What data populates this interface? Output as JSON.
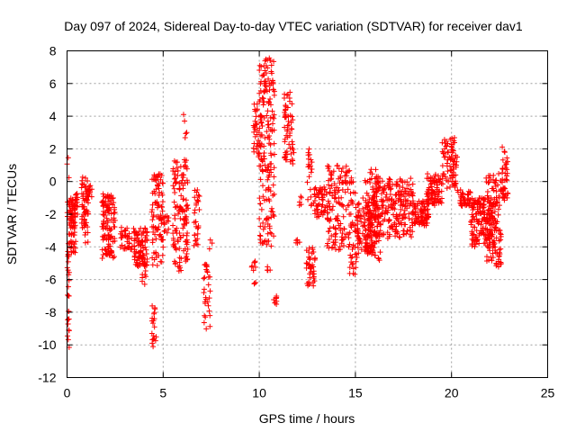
{
  "chart_data": {
    "type": "scatter",
    "title": "Day 097 of 2024, Sidereal Day-to-day VTEC variation (SDTVAR) for receiver dav1",
    "xlabel": "GPS time / hours",
    "ylabel": "SDTVAR / TECUs",
    "xlim": [
      0,
      25
    ],
    "ylim": [
      -12,
      8
    ],
    "xticks": [
      0,
      5,
      10,
      15,
      20,
      25
    ],
    "yticks": [
      -12,
      -10,
      -8,
      -6,
      -4,
      -2,
      0,
      2,
      4,
      6,
      8
    ],
    "grid": true,
    "marker": "+",
    "color": "#ff0000",
    "series": [
      {
        "name": "SDTVAR",
        "clusters": [
          {
            "x": [
              0.0,
              0.12
            ],
            "y": [
              -10.2,
              1.5
            ],
            "n": 40
          },
          {
            "x": [
              0.12,
              0.45
            ],
            "y": [
              -4.4,
              -1.0
            ],
            "n": 70
          },
          {
            "x": [
              0.35,
              0.55
            ],
            "y": [
              -2.2,
              -0.6
            ],
            "n": 20
          },
          {
            "x": [
              0.75,
              1.1
            ],
            "y": [
              -3.8,
              0.5
            ],
            "n": 60
          },
          {
            "x": [
              1.1,
              1.3
            ],
            "y": [
              -1.0,
              -0.2
            ],
            "n": 12
          },
          {
            "x": [
              1.8,
              2.5
            ],
            "y": [
              -4.7,
              -0.7
            ],
            "n": 120
          },
          {
            "x": [
              2.7,
              3.5
            ],
            "y": [
              -4.2,
              -2.8
            ],
            "n": 40
          },
          {
            "x": [
              3.5,
              4.2
            ],
            "y": [
              -5.2,
              -2.8
            ],
            "n": 80
          },
          {
            "x": [
              3.9,
              4.15
            ],
            "y": [
              -6.5,
              -4.5
            ],
            "n": 15
          },
          {
            "x": [
              4.4,
              4.65
            ],
            "y": [
              -10.3,
              -7.6
            ],
            "n": 20
          },
          {
            "x": [
              4.4,
              5.0
            ],
            "y": [
              -5.2,
              0.5
            ],
            "n": 90
          },
          {
            "x": [
              5.0,
              5.3
            ],
            "y": [
              -3.2,
              -2.0
            ],
            "n": 15
          },
          {
            "x": [
              5.5,
              6.3
            ],
            "y": [
              -5.5,
              1.5
            ],
            "n": 130
          },
          {
            "x": [
              6.0,
              6.3
            ],
            "y": [
              2.0,
              5.3
            ],
            "n": 5
          },
          {
            "x": [
              6.6,
              6.9
            ],
            "y": [
              -4.0,
              -0.5
            ],
            "n": 30
          },
          {
            "x": [
              7.1,
              7.45
            ],
            "y": [
              -9.2,
              -5.0
            ],
            "n": 30
          },
          {
            "x": [
              7.4,
              7.6
            ],
            "y": [
              -4.2,
              -3.5
            ],
            "n": 3
          },
          {
            "x": [
              9.6,
              9.85
            ],
            "y": [
              -6.3,
              -4.8
            ],
            "n": 10
          },
          {
            "x": [
              9.7,
              10.1
            ],
            "y": [
              1.5,
              5.0
            ],
            "n": 40
          },
          {
            "x": [
              10.0,
              10.8
            ],
            "y": [
              -4.0,
              7.7
            ],
            "n": 180
          },
          {
            "x": [
              10.4,
              10.6
            ],
            "y": [
              -5.5,
              -5.2
            ],
            "n": 4
          },
          {
            "x": [
              10.7,
              10.9
            ],
            "y": [
              -7.6,
              -7.0
            ],
            "n": 8
          },
          {
            "x": [
              11.3,
              11.8
            ],
            "y": [
              1.0,
              5.5
            ],
            "n": 60
          },
          {
            "x": [
              11.9,
              12.1
            ],
            "y": [
              -3.8,
              -3.5
            ],
            "n": 5
          },
          {
            "x": [
              12.0,
              12.2
            ],
            "y": [
              -1.5,
              -0.5
            ],
            "n": 5
          },
          {
            "x": [
              12.45,
              12.9
            ],
            "y": [
              -6.4,
              -4.0
            ],
            "n": 40
          },
          {
            "x": [
              12.5,
              12.75
            ],
            "y": [
              -1.5,
              2.0
            ],
            "n": 20
          },
          {
            "x": [
              12.8,
              13.5
            ],
            "y": [
              -2.2,
              -0.3
            ],
            "n": 50
          },
          {
            "x": [
              13.5,
              15.0
            ],
            "y": [
              -4.2,
              1.0
            ],
            "n": 160
          },
          {
            "x": [
              14.7,
              15.1
            ],
            "y": [
              -5.7,
              -4.4
            ],
            "n": 15
          },
          {
            "x": [
              15.0,
              16.0
            ],
            "y": [
              -4.5,
              -1.0
            ],
            "n": 120
          },
          {
            "x": [
              15.5,
              16.3
            ],
            "y": [
              -5.2,
              0.8
            ],
            "n": 90
          },
          {
            "x": [
              16.0,
              18.0
            ],
            "y": [
              -3.5,
              0.2
            ],
            "n": 220
          },
          {
            "x": [
              18.0,
              18.8
            ],
            "y": [
              -2.7,
              -1.2
            ],
            "n": 80
          },
          {
            "x": [
              18.7,
              19.5
            ],
            "y": [
              -1.5,
              0.5
            ],
            "n": 80
          },
          {
            "x": [
              19.5,
              20.3
            ],
            "y": [
              -0.5,
              2.8
            ],
            "n": 80
          },
          {
            "x": [
              20.3,
              21.0
            ],
            "y": [
              -1.5,
              -0.5
            ],
            "n": 40
          },
          {
            "x": [
              21.0,
              22.2
            ],
            "y": [
              -4.0,
              -1.0
            ],
            "n": 160
          },
          {
            "x": [
              21.8,
              22.6
            ],
            "y": [
              -5.3,
              0.5
            ],
            "n": 120
          },
          {
            "x": [
              22.6,
              22.95
            ],
            "y": [
              -1.2,
              2.2
            ],
            "n": 40
          }
        ]
      }
    ]
  }
}
